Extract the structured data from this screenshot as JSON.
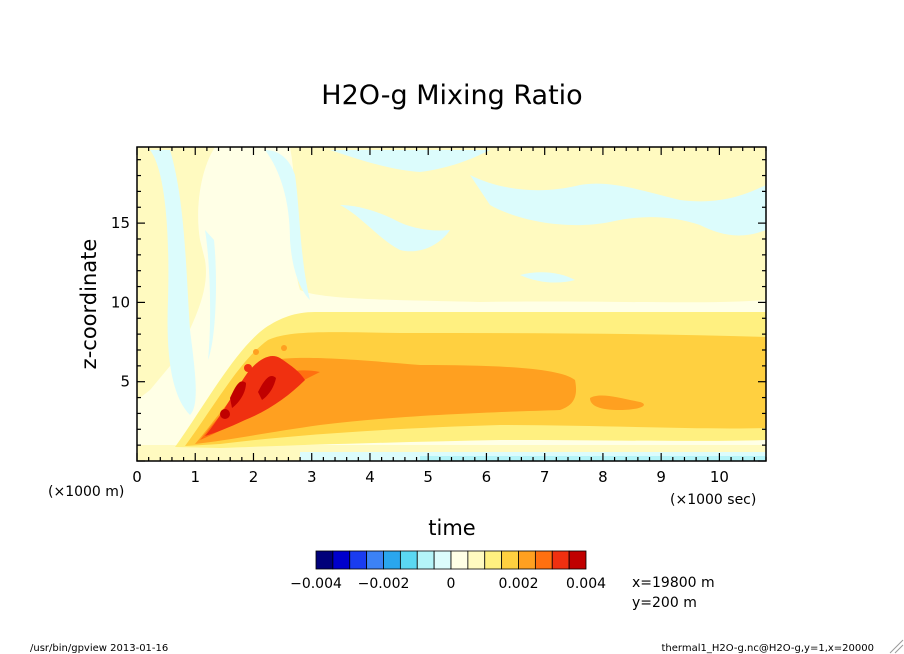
{
  "chart_data": {
    "type": "heatmap",
    "title": "H2O-g Mixing Ratio",
    "xlabel": "time",
    "ylabel": "z-coordinate",
    "x_unit_label": "(×1000 sec)",
    "y_unit_label": "(×1000 m)",
    "xlim": [
      0,
      10.8
    ],
    "ylim": [
      0,
      19.8
    ],
    "x_ticks": [
      "0",
      "1",
      "2",
      "3",
      "4",
      "5",
      "6",
      "7",
      "8",
      "9",
      "10"
    ],
    "y_ticks": [
      "5",
      "10",
      "15"
    ],
    "colorbar": {
      "levels": [
        -0.004,
        -0.0035,
        -0.003,
        -0.0025,
        -0.002,
        -0.0015,
        -0.001,
        -0.0005,
        0,
        0.0005,
        0.001,
        0.0015,
        0.002,
        0.0025,
        0.003,
        0.0035,
        0.004
      ],
      "colors": [
        "#00007a",
        "#0000cc",
        "#1a3cf0",
        "#3c82f5",
        "#2aa6ee",
        "#5ad8f2",
        "#b4f4f8",
        "#dcfcfc",
        "#ffffe6",
        "#fffac0",
        "#fff080",
        "#ffd040",
        "#ffa020",
        "#ff7010",
        "#f03010",
        "#c00000"
      ],
      "tick_labels": [
        "−0.004",
        "−0.002",
        "0",
        "0.002",
        "0.004"
      ]
    },
    "annotations": [
      "x=19800 m",
      "y=200 m"
    ]
  },
  "footer": {
    "left": "/usr/bin/gpview  2013-01-16",
    "right": "thermal1_H2O-g.nc@H2O-g,y=1,x=20000"
  }
}
